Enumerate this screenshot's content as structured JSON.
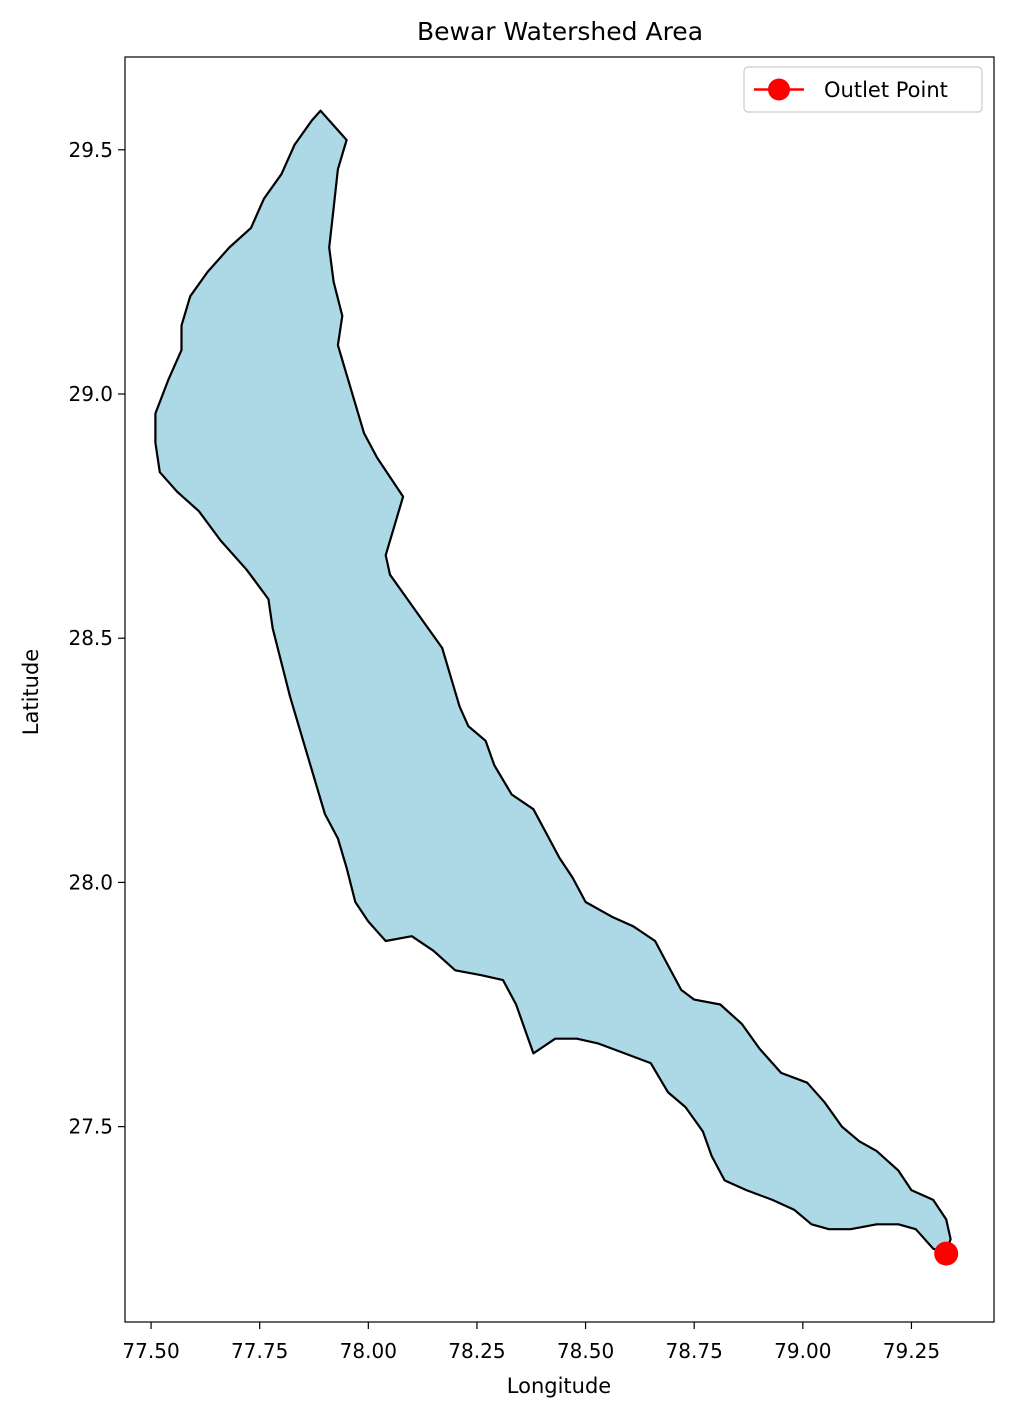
{
  "title": "Bewar Watershed Area",
  "xlabel": "Longitude",
  "ylabel": "Latitude",
  "colors": {
    "fill": "#add8e6",
    "boundary": "#000000",
    "outlet": "#ff0000"
  },
  "chart_data": {
    "type": "scatter",
    "title": "Bewar Watershed Area",
    "xlabel": "Longitude",
    "ylabel": "Latitude",
    "xlim": [
      77.44,
      79.44
    ],
    "ylim": [
      27.1,
      29.69
    ],
    "xticks": [
      77.5,
      77.75,
      78.0,
      78.25,
      78.5,
      78.75,
      79.0,
      79.25
    ],
    "xtick_labels": [
      "77.50",
      "77.75",
      "78.00",
      "78.25",
      "78.50",
      "78.75",
      "79.00",
      "79.25"
    ],
    "yticks": [
      27.5,
      28.0,
      28.5,
      29.0,
      29.5
    ],
    "ytick_labels": [
      "27.5",
      "28.0",
      "28.5",
      "29.0",
      "29.5"
    ],
    "grid": false,
    "legend_position": "top-right",
    "outlet": {
      "name": "Outlet Point",
      "lon": 79.33,
      "lat": 27.24
    },
    "watershed_boundary": [
      [
        77.89,
        29.58
      ],
      [
        77.92,
        29.55
      ],
      [
        77.95,
        29.52
      ],
      [
        77.93,
        29.46
      ],
      [
        77.92,
        29.38
      ],
      [
        77.91,
        29.3
      ],
      [
        77.92,
        29.23
      ],
      [
        77.94,
        29.16
      ],
      [
        77.93,
        29.1
      ],
      [
        77.95,
        29.04
      ],
      [
        77.97,
        28.98
      ],
      [
        77.99,
        28.92
      ],
      [
        78.02,
        28.87
      ],
      [
        78.05,
        28.83
      ],
      [
        78.08,
        28.79
      ],
      [
        78.06,
        28.73
      ],
      [
        78.04,
        28.67
      ],
      [
        78.05,
        28.63
      ],
      [
        78.09,
        28.58
      ],
      [
        78.13,
        28.53
      ],
      [
        78.17,
        28.48
      ],
      [
        78.19,
        28.42
      ],
      [
        78.21,
        28.36
      ],
      [
        78.23,
        28.32
      ],
      [
        78.27,
        28.29
      ],
      [
        78.29,
        28.24
      ],
      [
        78.33,
        28.18
      ],
      [
        78.38,
        28.15
      ],
      [
        78.41,
        28.1
      ],
      [
        78.44,
        28.05
      ],
      [
        78.47,
        28.01
      ],
      [
        78.5,
        27.96
      ],
      [
        78.56,
        27.93
      ],
      [
        78.61,
        27.91
      ],
      [
        78.66,
        27.88
      ],
      [
        78.69,
        27.83
      ],
      [
        78.72,
        27.78
      ],
      [
        78.75,
        27.76
      ],
      [
        78.81,
        27.75
      ],
      [
        78.86,
        27.71
      ],
      [
        78.9,
        27.66
      ],
      [
        78.95,
        27.61
      ],
      [
        79.01,
        27.59
      ],
      [
        79.05,
        27.55
      ],
      [
        79.09,
        27.5
      ],
      [
        79.13,
        27.47
      ],
      [
        79.17,
        27.45
      ],
      [
        79.22,
        27.41
      ],
      [
        79.25,
        27.37
      ],
      [
        79.3,
        27.35
      ],
      [
        79.33,
        27.31
      ],
      [
        79.34,
        27.27
      ],
      [
        79.33,
        27.24
      ],
      [
        79.3,
        27.25
      ],
      [
        79.26,
        27.29
      ],
      [
        79.22,
        27.3
      ],
      [
        79.17,
        27.3
      ],
      [
        79.11,
        27.29
      ],
      [
        79.06,
        27.29
      ],
      [
        79.02,
        27.3
      ],
      [
        78.98,
        27.33
      ],
      [
        78.93,
        27.35
      ],
      [
        78.87,
        27.37
      ],
      [
        78.82,
        27.39
      ],
      [
        78.79,
        27.44
      ],
      [
        78.77,
        27.49
      ],
      [
        78.73,
        27.54
      ],
      [
        78.69,
        27.57
      ],
      [
        78.65,
        27.63
      ],
      [
        78.59,
        27.65
      ],
      [
        78.53,
        27.67
      ],
      [
        78.48,
        27.68
      ],
      [
        78.43,
        27.68
      ],
      [
        78.38,
        27.65
      ],
      [
        78.36,
        27.7
      ],
      [
        78.34,
        27.75
      ],
      [
        78.31,
        27.8
      ],
      [
        78.26,
        27.81
      ],
      [
        78.2,
        27.82
      ],
      [
        78.15,
        27.86
      ],
      [
        78.1,
        27.89
      ],
      [
        78.04,
        27.88
      ],
      [
        78.0,
        27.92
      ],
      [
        77.97,
        27.96
      ],
      [
        77.95,
        28.03
      ],
      [
        77.93,
        28.09
      ],
      [
        77.9,
        28.14
      ],
      [
        77.88,
        28.2
      ],
      [
        77.86,
        28.26
      ],
      [
        77.84,
        28.32
      ],
      [
        77.82,
        28.38
      ],
      [
        77.8,
        28.45
      ],
      [
        77.78,
        28.52
      ],
      [
        77.77,
        28.58
      ],
      [
        77.72,
        28.64
      ],
      [
        77.66,
        28.7
      ],
      [
        77.61,
        28.76
      ],
      [
        77.56,
        28.8
      ],
      [
        77.52,
        28.84
      ],
      [
        77.51,
        28.9
      ],
      [
        77.51,
        28.96
      ],
      [
        77.54,
        29.03
      ],
      [
        77.57,
        29.09
      ],
      [
        77.57,
        29.14
      ],
      [
        77.59,
        29.2
      ],
      [
        77.63,
        29.25
      ],
      [
        77.68,
        29.3
      ],
      [
        77.73,
        29.34
      ],
      [
        77.76,
        29.4
      ],
      [
        77.8,
        29.45
      ],
      [
        77.83,
        29.51
      ],
      [
        77.87,
        29.56
      ]
    ]
  }
}
